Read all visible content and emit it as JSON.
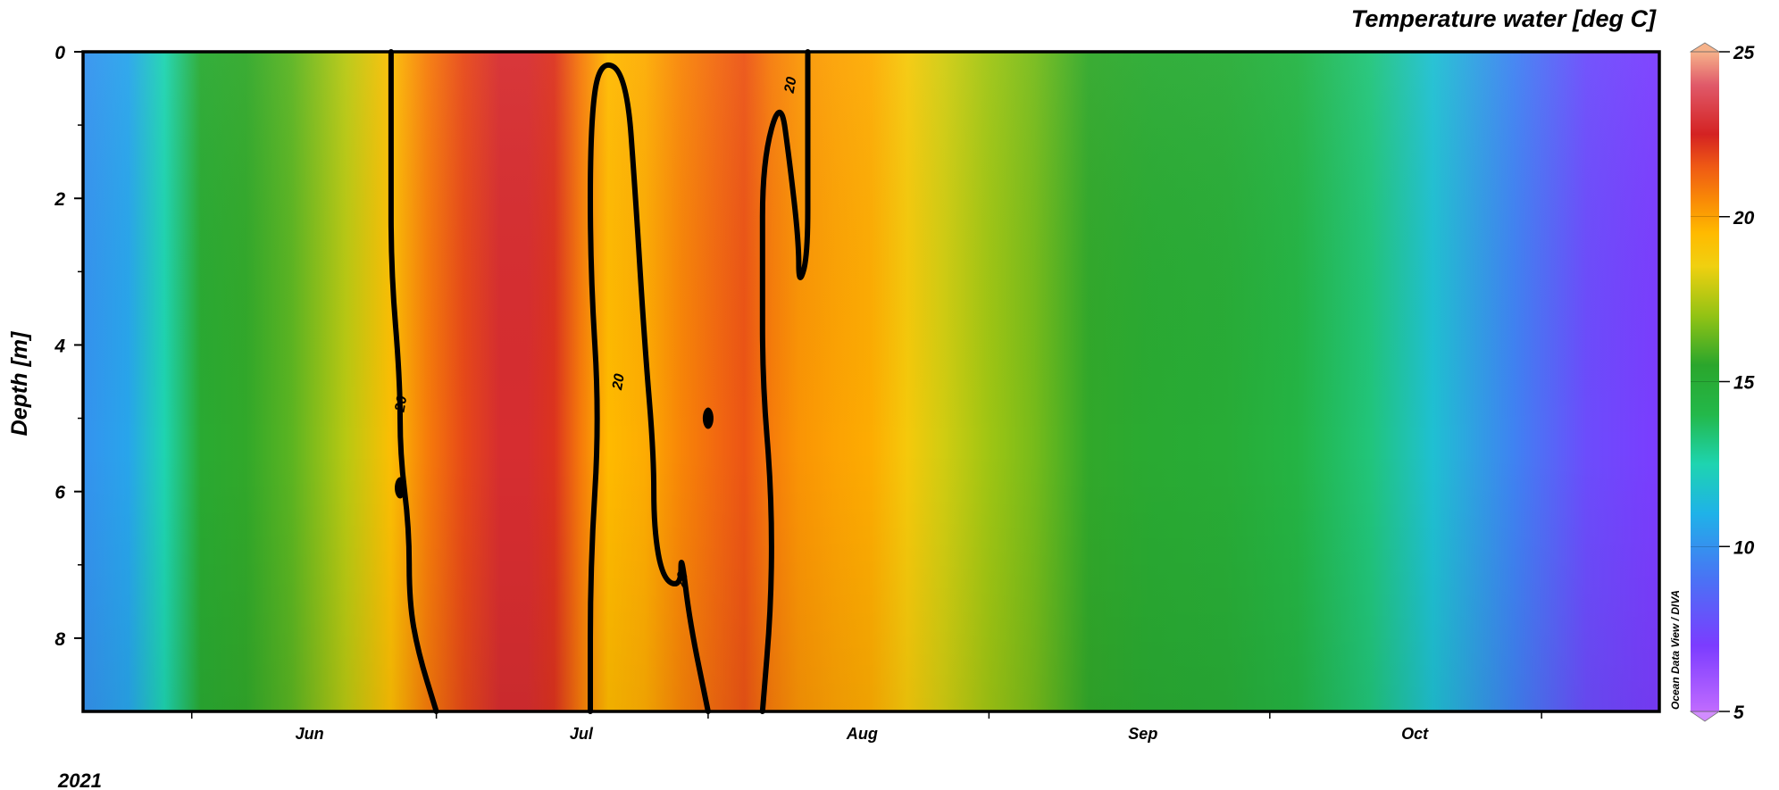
{
  "chart_data": {
    "type": "heatmap",
    "title": "Temperature water [deg C]",
    "ylabel": "Depth [m]",
    "xlabel": "",
    "year_label": "2021",
    "x_tick_labels": [
      "Jun",
      "Jul",
      "Aug",
      "Sep",
      "Oct"
    ],
    "x_range": [
      "2021-05-07",
      "2021-10-28"
    ],
    "x_minor_ticks": [
      "2021-05-19",
      "2021-06-15",
      "2021-07-15",
      "2021-08-15",
      "2021-09-15",
      "2021-10-15"
    ],
    "x_label_dates": [
      "2021-06-01",
      "2021-07-01",
      "2021-08-01",
      "2021-09-01",
      "2021-10-01"
    ],
    "y_range": [
      0,
      9
    ],
    "y_inverted": true,
    "y_ticks": [
      0,
      2,
      4,
      6,
      8
    ],
    "y_minor_ticks": [
      1,
      3,
      5,
      7
    ],
    "colorbar": {
      "min": 5,
      "max": 25,
      "ticks": [
        5,
        10,
        15,
        20,
        25
      ],
      "extend": "both",
      "stops": [
        {
          "value": 5,
          "color": "#c06bff"
        },
        {
          "value": 7,
          "color": "#7b3cff"
        },
        {
          "value": 9,
          "color": "#4a72f5"
        },
        {
          "value": 11,
          "color": "#1fb2e8"
        },
        {
          "value": 12.5,
          "color": "#1ed4b0"
        },
        {
          "value": 14,
          "color": "#23b84a"
        },
        {
          "value": 15.5,
          "color": "#2aa62c"
        },
        {
          "value": 17,
          "color": "#93c314"
        },
        {
          "value": 18.5,
          "color": "#f0d010"
        },
        {
          "value": 19.5,
          "color": "#ffba00"
        },
        {
          "value": 20.5,
          "color": "#f98a06"
        },
        {
          "value": 21.5,
          "color": "#ef5a14"
        },
        {
          "value": 22.5,
          "color": "#d42222"
        },
        {
          "value": 24,
          "color": "#e05a6a"
        },
        {
          "value": 25,
          "color": "#f6b28a"
        }
      ],
      "over_color": "#f6b28a",
      "under_color": "#d28cff"
    },
    "surface_temperature_series": {
      "name": "",
      "dates": [
        "2021-05-07",
        "2021-05-12",
        "2021-05-16",
        "2021-05-20",
        "2021-05-25",
        "2021-05-30",
        "2021-06-05",
        "2021-06-10",
        "2021-06-14",
        "2021-06-18",
        "2021-06-22",
        "2021-06-25",
        "2021-06-28",
        "2021-07-01",
        "2021-07-04",
        "2021-07-08",
        "2021-07-12",
        "2021-07-16",
        "2021-07-19",
        "2021-07-22",
        "2021-07-25",
        "2021-07-29",
        "2021-08-02",
        "2021-08-06",
        "2021-08-10",
        "2021-08-15",
        "2021-08-20",
        "2021-08-26",
        "2021-09-02",
        "2021-09-10",
        "2021-09-18",
        "2021-09-26",
        "2021-10-03",
        "2021-10-12",
        "2021-10-20",
        "2021-10-28"
      ],
      "values": [
        10.0,
        10.6,
        12.5,
        15.2,
        15.6,
        16.2,
        17.6,
        19.3,
        20.8,
        21.8,
        22.8,
        22.8,
        22.2,
        20.8,
        19.5,
        19.8,
        20.6,
        21.2,
        21.6,
        20.8,
        20.3,
        20.0,
        19.8,
        18.8,
        18.0,
        17.2,
        16.6,
        15.6,
        15.2,
        15.0,
        14.3,
        13.3,
        11.6,
        9.5,
        7.6,
        7.0
      ]
    },
    "contour_level": 20,
    "contour_label": "20",
    "contours": [
      {
        "name": "",
        "points": [
          [
            "2021-06-10",
            0
          ],
          [
            "2021-06-10",
            1.5
          ],
          [
            "2021-06-10",
            3.0
          ],
          [
            "2021-06-11",
            4.5
          ],
          [
            "2021-06-11",
            5.5
          ],
          [
            "2021-06-12",
            6.5
          ],
          [
            "2021-06-12",
            7.5
          ],
          [
            "2021-06-13",
            8.2
          ],
          [
            "2021-06-15",
            9.0
          ]
        ]
      },
      {
        "name": "",
        "points": [
          [
            "2021-07-02",
            9.0
          ],
          [
            "2021-07-02",
            7.0
          ],
          [
            "2021-07-03",
            5.0
          ],
          [
            "2021-07-02",
            3.0
          ],
          [
            "2021-07-02",
            1.0
          ],
          [
            "2021-07-03",
            0.1
          ],
          [
            "2021-07-06",
            0.3
          ],
          [
            "2021-07-07",
            2.0
          ],
          [
            "2021-07-08",
            4.0
          ],
          [
            "2021-07-09",
            5.5
          ],
          [
            "2021-07-09",
            6.5
          ],
          [
            "2021-07-10",
            7.2
          ],
          [
            "2021-07-12",
            7.3
          ],
          [
            "2021-07-12",
            6.8
          ],
          [
            "2021-07-13",
            7.8
          ],
          [
            "2021-07-15",
            9.0
          ]
        ]
      },
      {
        "name": "",
        "points": [
          [
            "2021-07-21",
            9.0
          ],
          [
            "2021-07-22",
            7.5
          ],
          [
            "2021-07-22",
            6.0
          ],
          [
            "2021-07-21",
            4.5
          ],
          [
            "2021-07-21",
            3.0
          ],
          [
            "2021-07-21",
            1.5
          ],
          [
            "2021-07-23",
            0.6
          ],
          [
            "2021-07-24",
            1.5
          ],
          [
            "2021-07-25",
            2.6
          ],
          [
            "2021-07-25",
            3.2
          ],
          [
            "2021-07-26",
            2.8
          ],
          [
            "2021-07-26",
            1.5
          ],
          [
            "2021-07-26",
            0
          ]
        ]
      }
    ],
    "contour_blobs": [
      [
        "2021-06-11",
        5.95
      ],
      [
        "2021-07-15",
        5.0
      ]
    ],
    "contour_label_positions": [
      [
        "2021-06-11",
        4.8
      ],
      [
        "2021-07-05",
        4.5
      ],
      [
        "2021-07-12",
        7.2
      ],
      [
        "2021-07-24",
        0.45
      ]
    ],
    "credit": "Ocean Data View / DIVA"
  }
}
